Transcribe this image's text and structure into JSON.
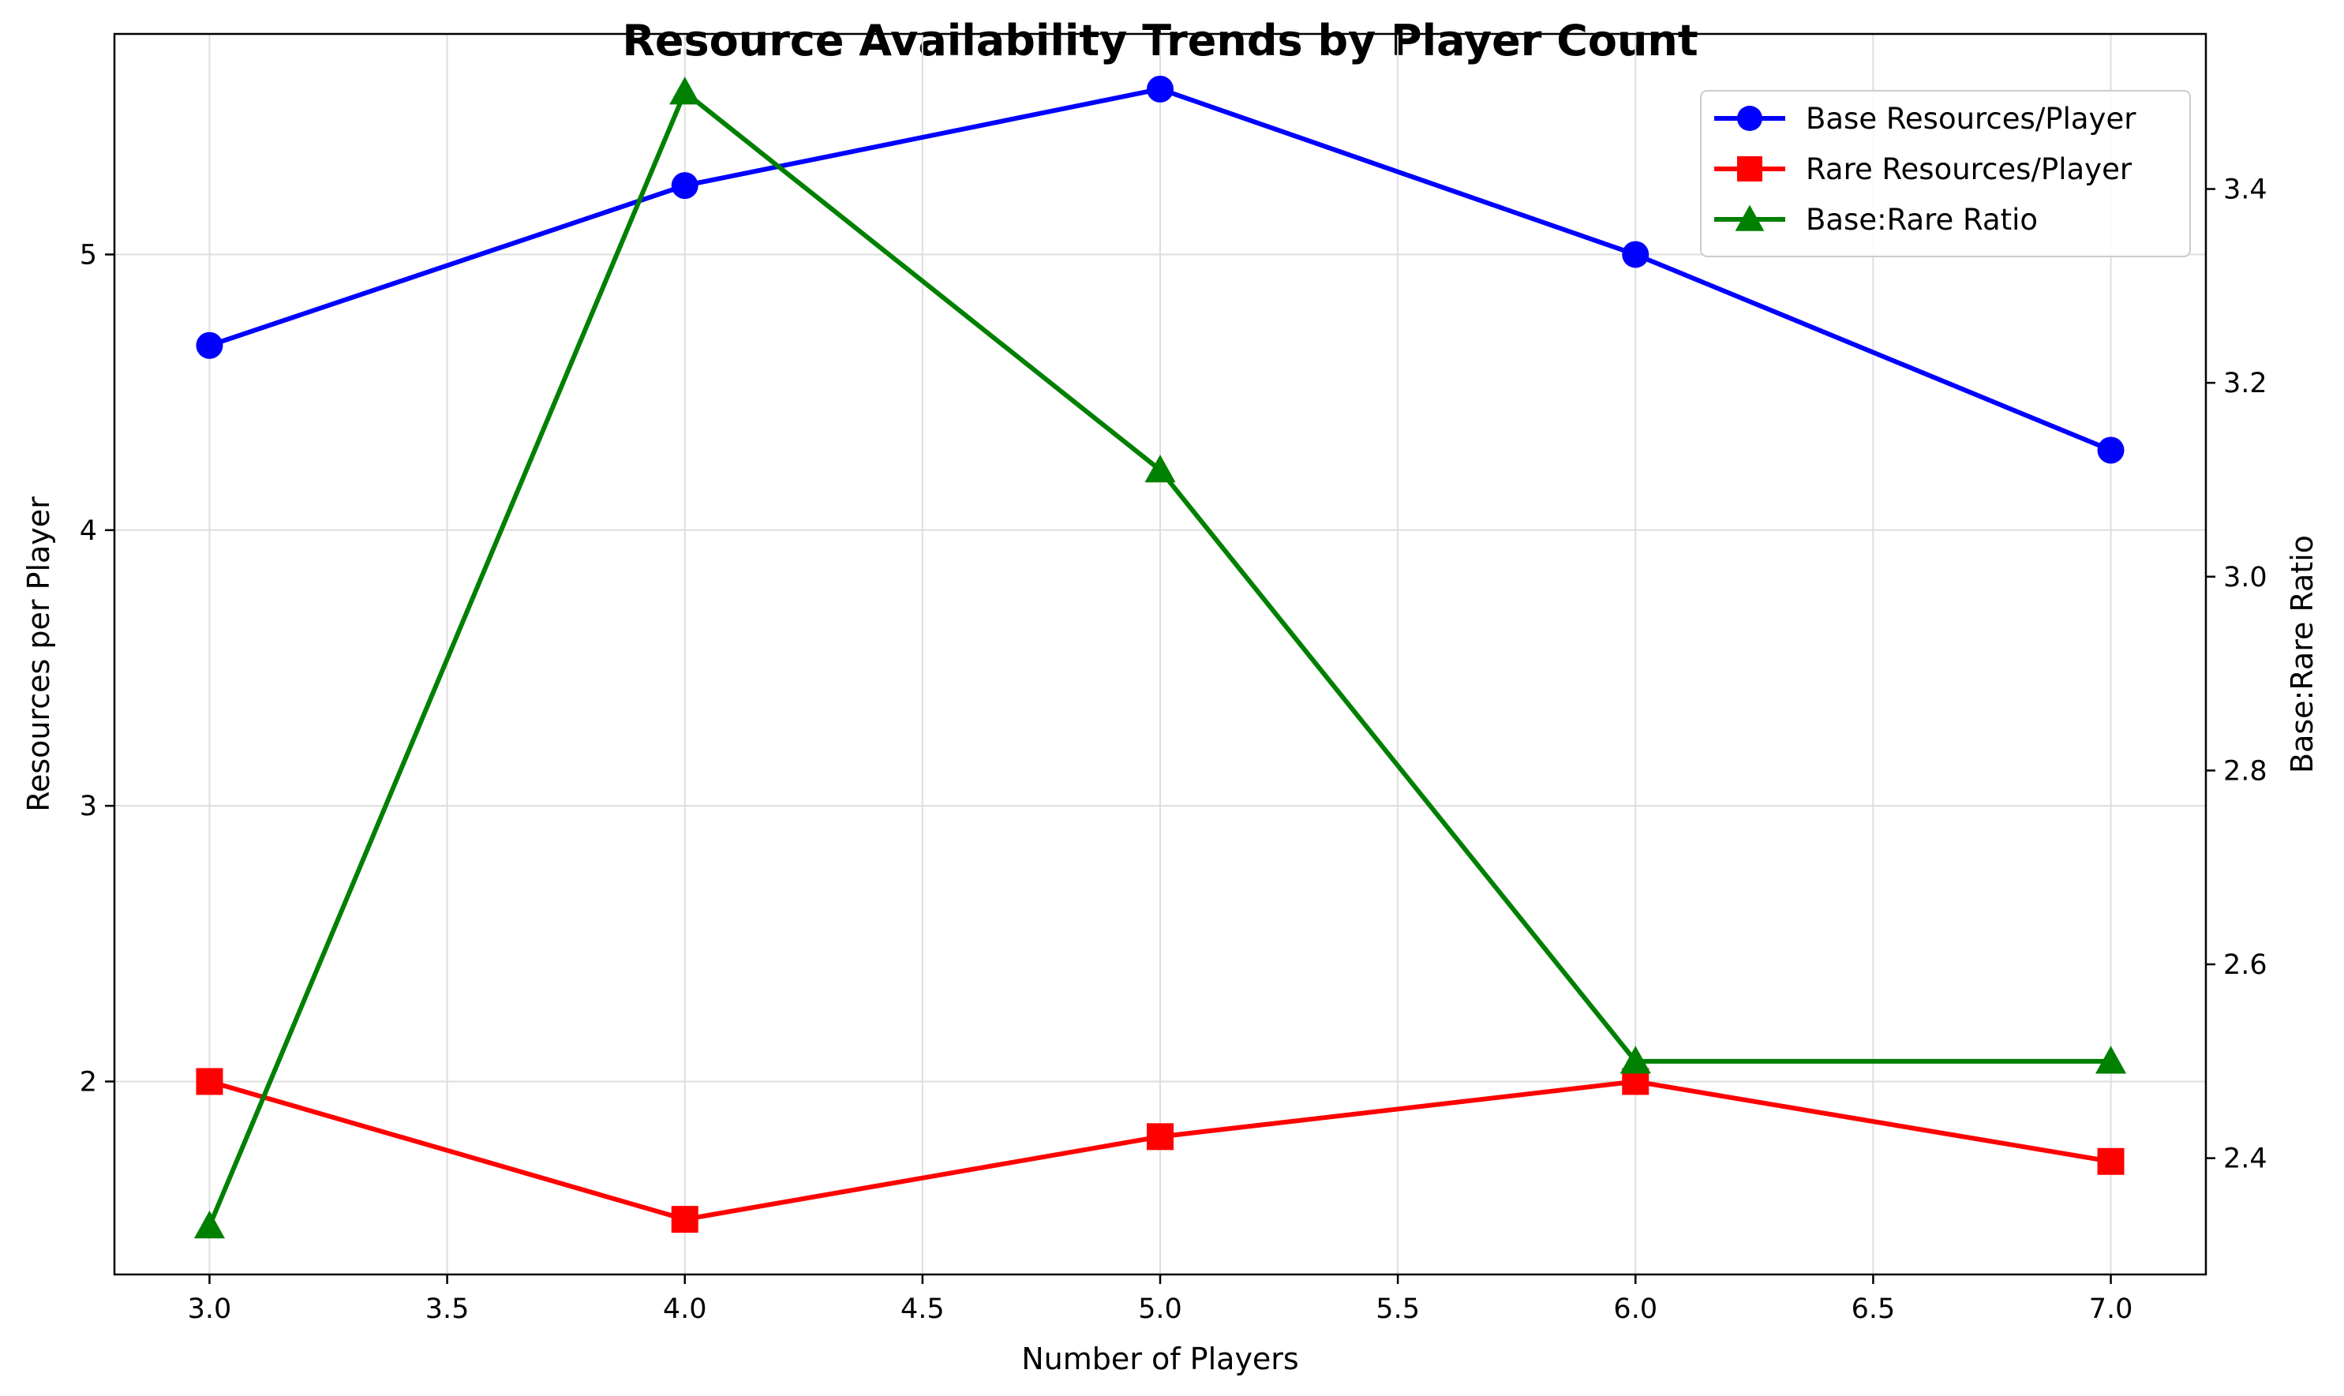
{
  "chart_data": {
    "type": "line",
    "title": "Resource Availability Trends by Player Count",
    "xlabel": "Number of Players",
    "ylabel_left": "Resources per Player",
    "ylabel_right": "Base:Rare Ratio",
    "x": [
      3,
      4,
      5,
      6,
      7
    ],
    "xlim": [
      2.8,
      7.2
    ],
    "ylim_left": [
      1.3,
      5.8
    ],
    "ylim_right": [
      2.28,
      3.56
    ],
    "x_ticks": [
      "3.0",
      "3.5",
      "4.0",
      "4.5",
      "5.0",
      "5.5",
      "6.0",
      "6.5",
      "7.0"
    ],
    "y_ticks_left": [
      "2",
      "3",
      "4",
      "5"
    ],
    "y_ticks_right": [
      "2.4",
      "2.6",
      "2.8",
      "3.0",
      "3.2",
      "3.4"
    ],
    "grid": true,
    "legend_position": "top-right",
    "series": [
      {
        "name": "Base Resources/Player",
        "axis": "left",
        "marker": "circle",
        "color": "#0000ff",
        "values": [
          4.67,
          5.25,
          5.6,
          5.0,
          4.29
        ]
      },
      {
        "name": "Rare Resources/Player",
        "axis": "left",
        "marker": "square",
        "color": "#ff0000",
        "values": [
          2.0,
          1.5,
          1.8,
          2.0,
          1.71
        ]
      },
      {
        "name": "Base:Rare Ratio",
        "axis": "right",
        "marker": "triangle",
        "color": "#008000",
        "values": [
          2.33,
          3.5,
          3.11,
          2.5,
          2.5
        ]
      }
    ]
  }
}
